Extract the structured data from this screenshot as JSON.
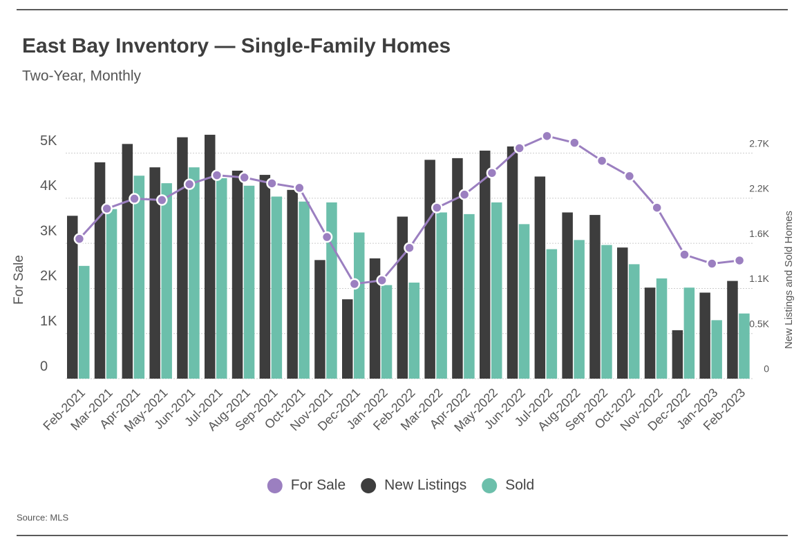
{
  "chart_data": {
    "type": "bar",
    "title": "East Bay Inventory — Single-Family Homes",
    "subtitle": "Two-Year, Monthly",
    "source": "Source: MLS",
    "ylabel": "For Sale",
    "y2label": "New Listings and Sold Homes",
    "categories": [
      "Feb-2021",
      "Mar-2021",
      "Apr-2021",
      "May-2021",
      "Jun-2021",
      "Jul-2021",
      "Aug-2021",
      "Sep-2021",
      "Oct-2021",
      "Nov-2021",
      "Dec-2021",
      "Jan-2022",
      "Feb-2022",
      "Mar-2022",
      "Apr-2022",
      "May-2022",
      "Jun-2022",
      "Jul-2022",
      "Aug-2022",
      "Sep-2022",
      "Oct-2022",
      "Nov-2022",
      "Dec-2022",
      "Jan-2023",
      "Feb-2023"
    ],
    "series": [
      {
        "name": "For Sale",
        "type": "line",
        "axis": "y",
        "color": "#9b7fc0",
        "values": [
          3100,
          3770,
          3990,
          3960,
          4310,
          4510,
          4460,
          4330,
          4230,
          3140,
          2100,
          2180,
          2900,
          3790,
          4080,
          4560,
          5110,
          5380,
          5230,
          4830,
          4490,
          3790,
          2750,
          2550,
          2620
        ]
      },
      {
        "name": "New Listings",
        "type": "bar",
        "axis": "y2",
        "color": "#3d3d3d",
        "values": [
          1950,
          2590,
          2810,
          2530,
          2890,
          2920,
          2490,
          2440,
          2260,
          1420,
          950,
          1440,
          1940,
          2620,
          2640,
          2730,
          2780,
          2420,
          1990,
          1960,
          1570,
          1090,
          580,
          1030,
          1170
        ]
      },
      {
        "name": "Sold",
        "type": "bar",
        "axis": "y2",
        "color": "#6cbfab",
        "values": [
          1350,
          2030,
          2430,
          2340,
          2530,
          2400,
          2310,
          2180,
          2120,
          2110,
          1750,
          1120,
          1150,
          1990,
          1970,
          2110,
          1850,
          1550,
          1660,
          1600,
          1370,
          1200,
          1090,
          700,
          780
        ]
      }
    ],
    "ylim": [
      0,
      5500
    ],
    "yticks": [
      0,
      {
        "value": 1000,
        "label": "1K"
      },
      {
        "value": 2000,
        "label": "2K"
      },
      {
        "value": 3000,
        "label": "3K"
      },
      {
        "value": 4000,
        "label": "4K"
      },
      {
        "value": 5000,
        "label": "5K"
      }
    ],
    "y2lim": [
      0,
      2970
    ],
    "y2ticks": [
      0,
      {
        "value": 540,
        "label": "0.5K"
      },
      {
        "value": 1080,
        "label": "1.1K"
      },
      {
        "value": 1620,
        "label": "1.6K"
      },
      {
        "value": 2160,
        "label": "2.2K"
      },
      {
        "value": 2700,
        "label": "2.7K"
      }
    ],
    "grid": true,
    "legend": "bottom"
  }
}
